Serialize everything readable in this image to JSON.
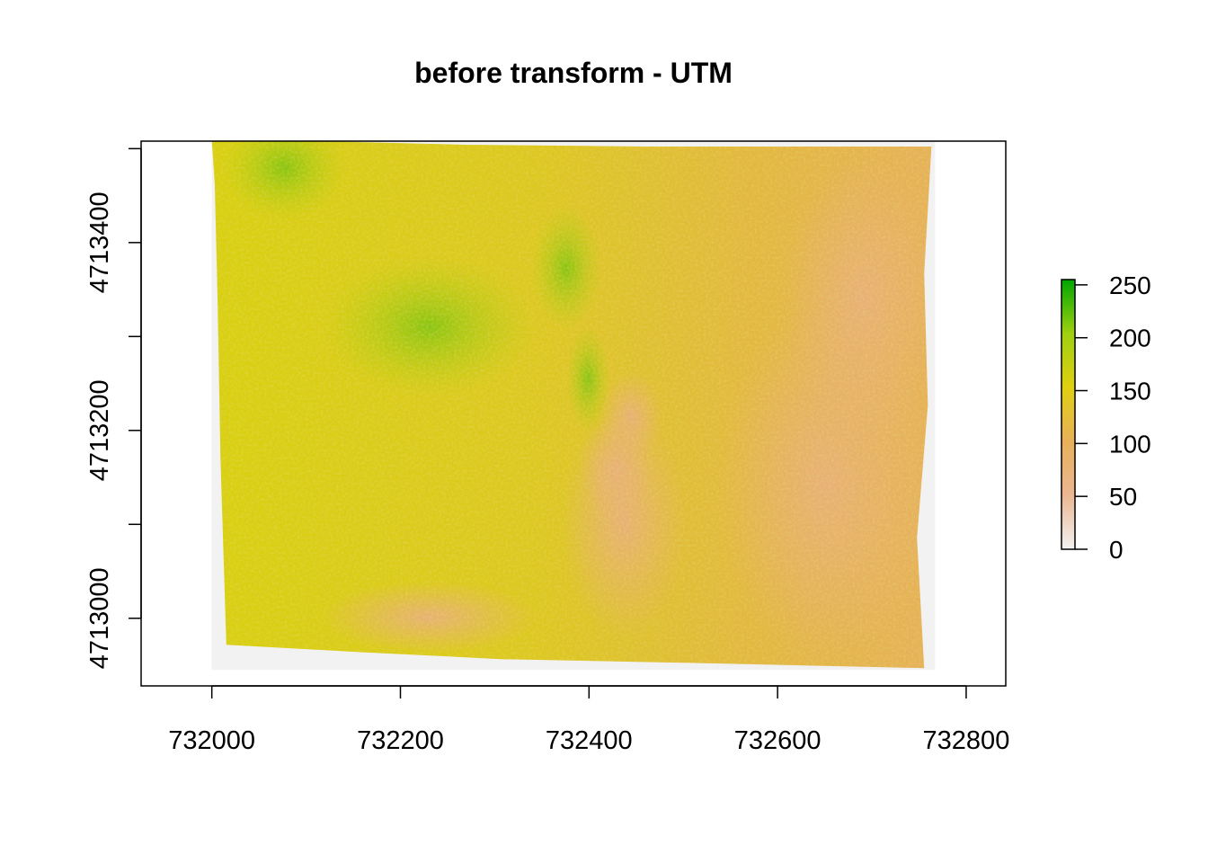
{
  "chart_data": {
    "type": "heatmap",
    "title": "before transform - UTM",
    "xlabel": "",
    "ylabel": "",
    "xlim": [
      731925,
      732842
    ],
    "ylim": [
      4712928,
      4713508
    ],
    "x_ticks": [
      {
        "value": 732000,
        "label": "732000"
      },
      {
        "value": 732200,
        "label": "732200"
      },
      {
        "value": 732400,
        "label": "732400"
      },
      {
        "value": 732600,
        "label": "732600"
      },
      {
        "value": 732800,
        "label": "732800"
      }
    ],
    "y_ticks": [
      {
        "value": 4713000,
        "label": "4713000"
      },
      {
        "value": 4713100,
        "label": ""
      },
      {
        "value": 4713200,
        "label": "4713200"
      },
      {
        "value": 4713300,
        "label": ""
      },
      {
        "value": 4713400,
        "label": "4713400"
      },
      {
        "value": 4713500,
        "label": ""
      }
    ],
    "raster_extent": {
      "xmin": 732000,
      "xmax": 732767,
      "ymin": 4712945,
      "ymax": 4713508
    },
    "colorbar": {
      "range": [
        0,
        255
      ],
      "ticks": [
        {
          "value": 0,
          "label": "0"
        },
        {
          "value": 50,
          "label": "50"
        },
        {
          "value": 100,
          "label": "100"
        },
        {
          "value": 150,
          "label": "150"
        },
        {
          "value": 200,
          "label": "200"
        },
        {
          "value": 250,
          "label": "250"
        }
      ],
      "colors": [
        "#f2f2f2",
        "#ebb792",
        "#e8b05a",
        "#e0d010",
        "#9fd010",
        "#00a600"
      ]
    },
    "legend_placement": "right",
    "grid": false
  }
}
